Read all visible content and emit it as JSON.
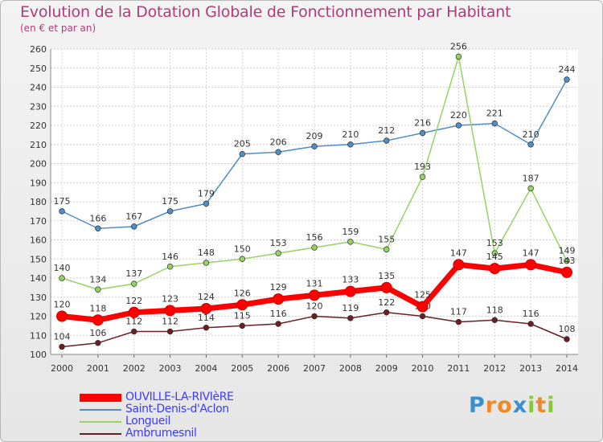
{
  "title": "Evolution de la Dotation Globale de Fonctionnement par Habitant",
  "subtitle": "(en € et par an)",
  "logo": {
    "chars": [
      "P",
      "r",
      "o",
      "x",
      "i",
      "t",
      "i"
    ],
    "colors": [
      "#3a8fd0",
      "#f08a24",
      "#f08a24",
      "#3a8fd0",
      "#8cc63f",
      "#f08a24",
      "#8cc63f"
    ]
  },
  "chart_data": {
    "type": "line",
    "x": [
      "2000",
      "2001",
      "2002",
      "2003",
      "2004",
      "2005",
      "2006",
      "2007",
      "2008",
      "2009",
      "2010",
      "2011",
      "2012",
      "2013",
      "2014"
    ],
    "ylim": [
      100,
      260
    ],
    "yticks": [
      "100",
      "110",
      "120",
      "130",
      "140",
      "150",
      "160",
      "170",
      "180",
      "190",
      "200",
      "210",
      "220",
      "230",
      "240",
      "250",
      "260"
    ],
    "grid": true,
    "legend_position": "bottom-left",
    "series": [
      {
        "name": "Saint-Denis-d'Aclon",
        "color": "#4f8ec9",
        "values": [
          175,
          166,
          167,
          175,
          179,
          205,
          206,
          209,
          210,
          212,
          216,
          220,
          221,
          210,
          244
        ]
      },
      {
        "name": "Longueil",
        "color": "#96d365",
        "values": [
          140,
          134,
          137,
          146,
          148,
          150,
          153,
          156,
          159,
          155,
          193,
          256,
          153,
          187,
          149
        ]
      },
      {
        "name": "Ambrumesnil",
        "color": "#6b1f24",
        "values": [
          104,
          106,
          112,
          112,
          114,
          115,
          116,
          120,
          119,
          122,
          120,
          117,
          118,
          116,
          108
        ]
      },
      {
        "name": "OUVILLE-LA-RIVIèRE",
        "color": "#ff0000",
        "values": [
          120,
          118,
          122,
          123,
          124,
          126,
          129,
          131,
          133,
          135,
          125,
          147,
          145,
          147,
          143
        ]
      }
    ],
    "legend_order": [
      3,
      0,
      1,
      2
    ]
  }
}
